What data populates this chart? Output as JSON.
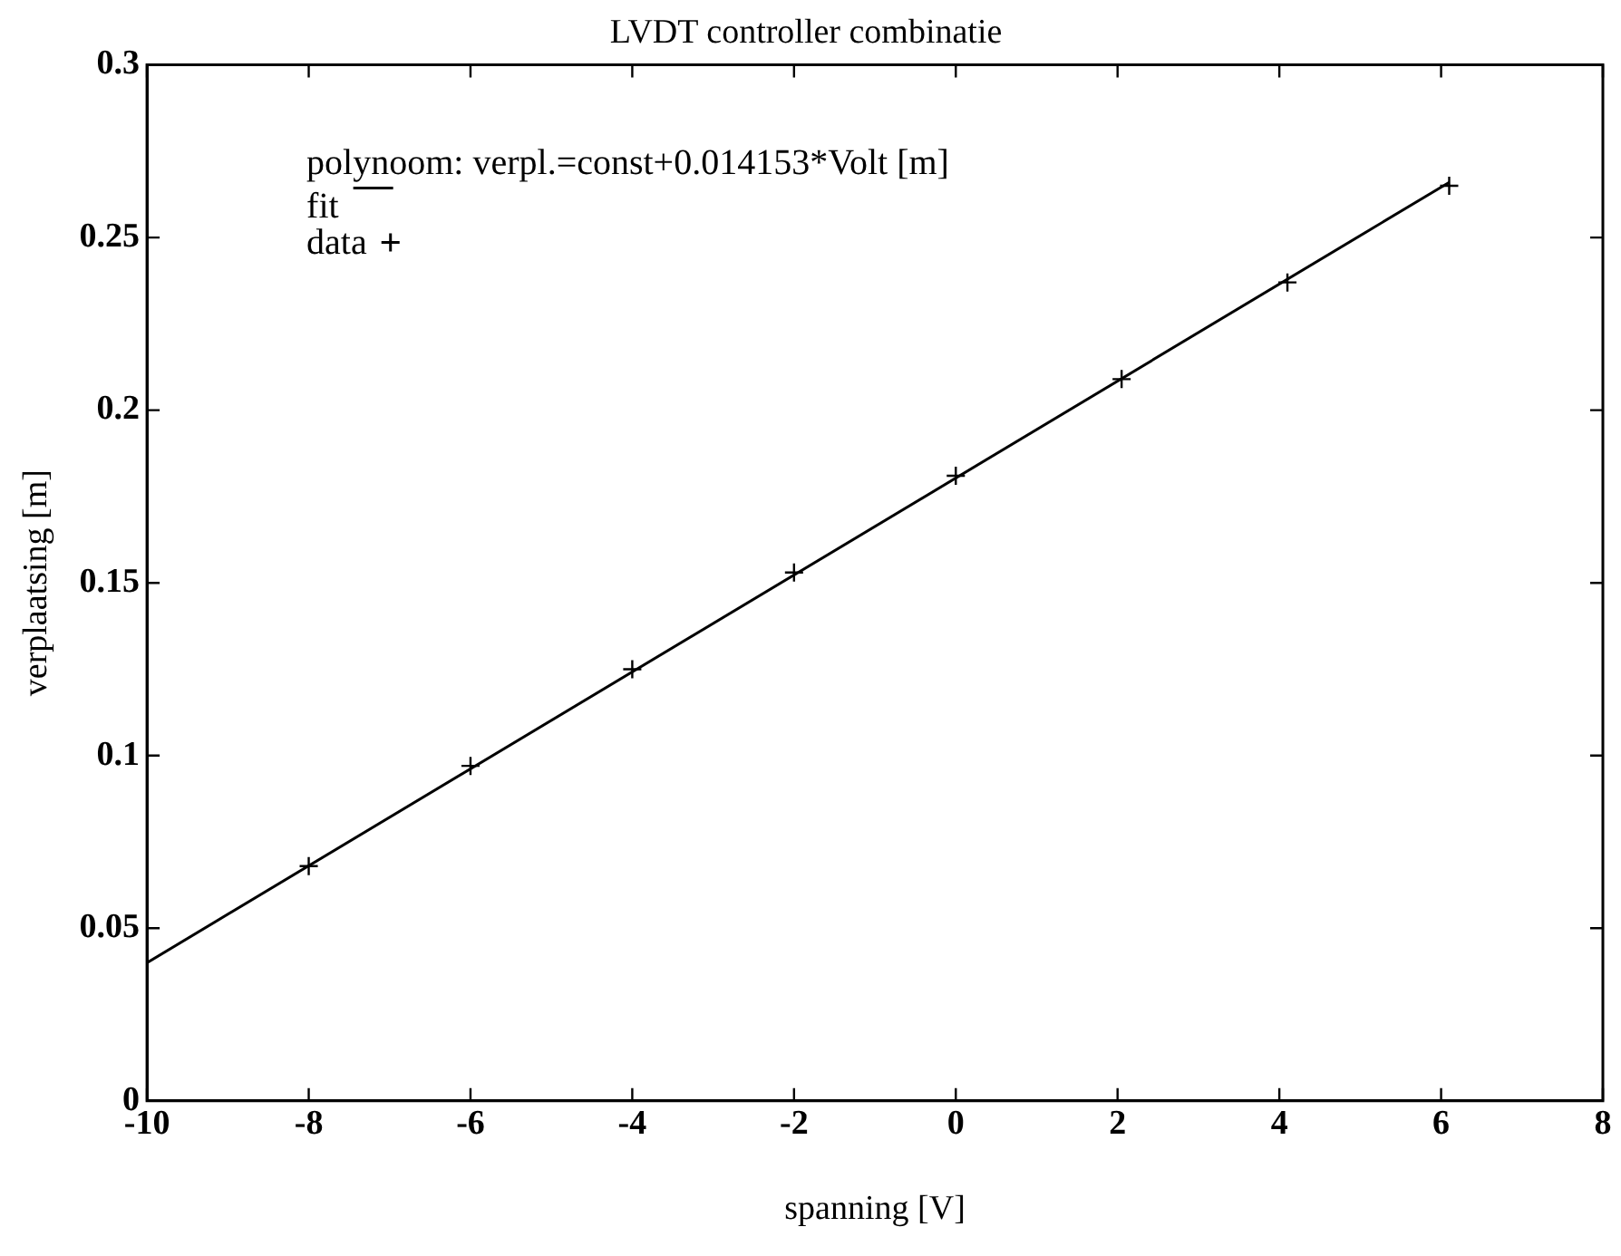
{
  "chart_data": {
    "type": "line",
    "title": "LVDT controller combinatie",
    "xlabel": "spanning [V]",
    "ylabel": "verplaatsing [m]",
    "annotations": [
      "polynoom: verpl.=const+0.014153*Volt [m]"
    ],
    "series": [
      {
        "name": "fit",
        "type": "line",
        "color": "#000000",
        "x": [
          -10,
          6.1
        ],
        "values": [
          0.04,
          0.266
        ],
        "marker": "none",
        "line_style": "solid"
      },
      {
        "name": "data",
        "type": "scatter",
        "color": "#000000",
        "x": [
          -8,
          -6,
          -4,
          -2,
          0,
          2.05,
          4.1,
          6.1
        ],
        "values": [
          0.068,
          0.097,
          0.125,
          0.153,
          0.181,
          0.209,
          0.237,
          0.265
        ],
        "marker": "cross"
      }
    ],
    "xlim": [
      -10,
      8
    ],
    "xticks": [
      -10,
      -8,
      -6,
      -4,
      -2,
      0,
      2,
      4,
      6,
      8
    ],
    "ylim": [
      0,
      0.3
    ],
    "yticks": [
      0,
      0.05,
      0.1,
      0.15,
      0.2,
      0.25,
      0.3
    ],
    "grid": false,
    "legend": "top left"
  }
}
